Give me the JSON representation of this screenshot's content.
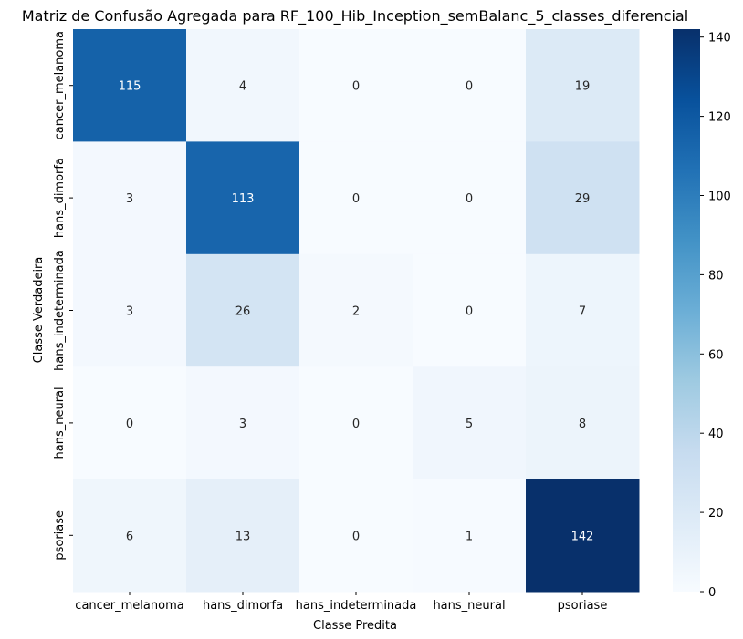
{
  "chart_data": {
    "type": "heatmap",
    "title": "Matriz de Confusão Agregada para RF_100_Hib_Inception_semBalanc_5_classes_diferencial",
    "xlabel": "Classe Predita",
    "ylabel": "Classe Verdadeira",
    "x_categories": [
      "cancer_melanoma",
      "hans_dimorfa",
      "hans_indeterminada",
      "hans_neural",
      "psoriase"
    ],
    "y_categories": [
      "cancer_melanoma",
      "hans_dimorfa",
      "hans_indeterminada",
      "hans_neural",
      "psoriase"
    ],
    "matrix": [
      [
        115,
        4,
        0,
        0,
        19
      ],
      [
        3,
        113,
        0,
        0,
        29
      ],
      [
        3,
        26,
        2,
        0,
        7
      ],
      [
        0,
        3,
        0,
        5,
        8
      ],
      [
        6,
        13,
        0,
        1,
        142
      ]
    ],
    "colormap": "Blues",
    "vmin": 0,
    "vmax": 142,
    "colorbar_ticks": [
      "0",
      "20",
      "40",
      "60",
      "80",
      "100",
      "120",
      "140"
    ]
  }
}
